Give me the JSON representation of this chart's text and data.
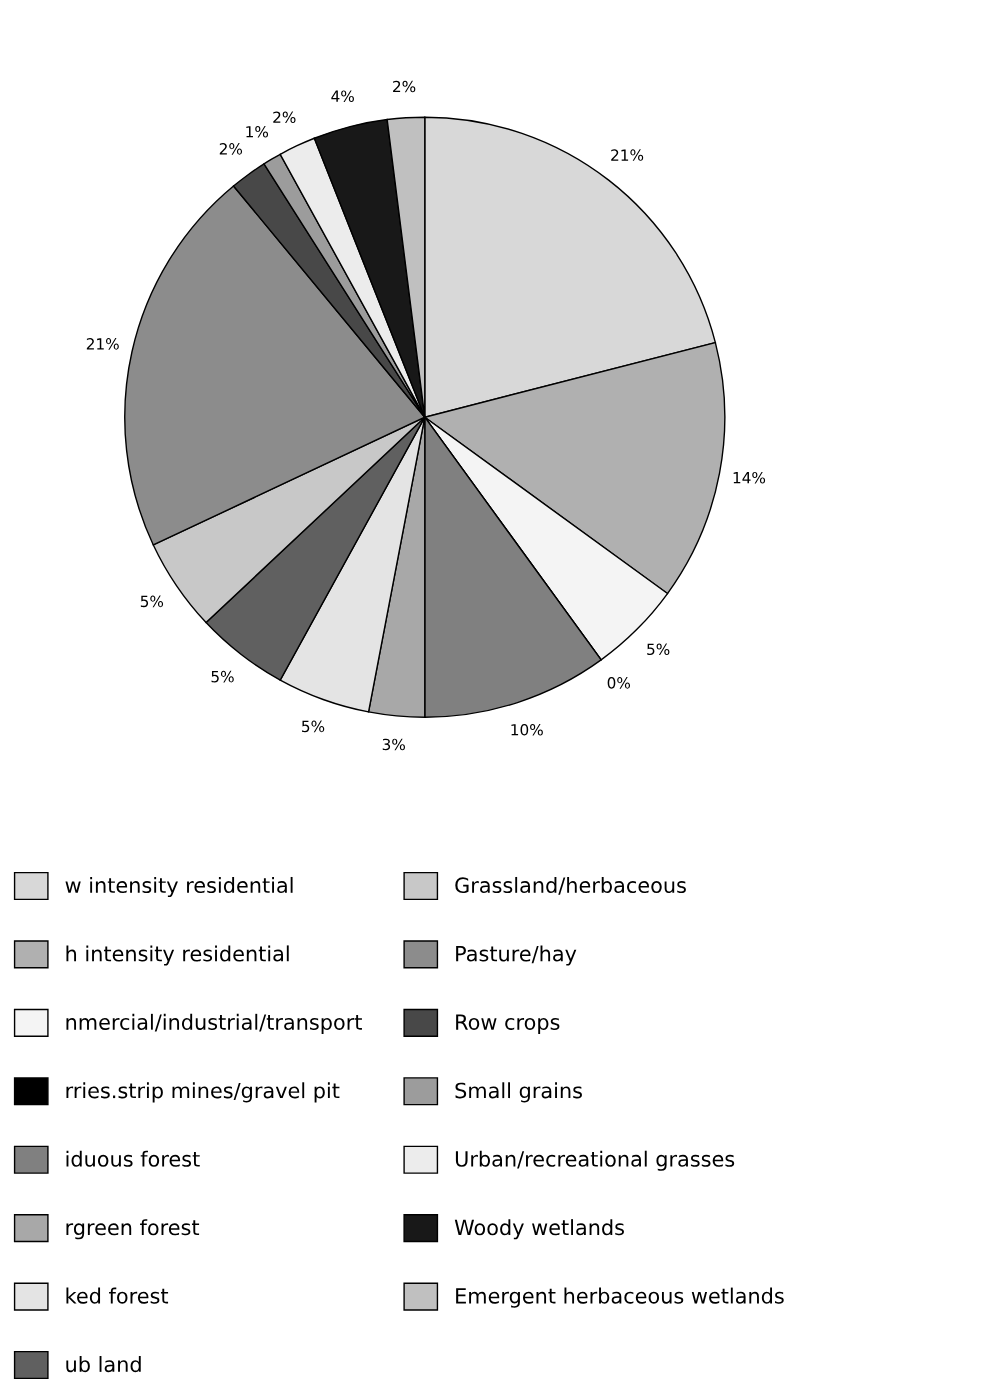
{
  "chart_data": {
    "type": "pie",
    "categories": [
      "w intensity residential",
      "h intensity residential",
      "nmercial/industrial/transport",
      "rries.strip mines/gravel pit",
      "iduous forest",
      "rgreen forest",
      "ked forest",
      "ub land",
      "Grassland/herbaceous",
      "Pasture/hay",
      "Row crops",
      "Small grains",
      "Urban/recreational grasses",
      "Woody wetlands",
      "Emergent herbaceous wetlands"
    ],
    "values": [
      21,
      14,
      5,
      0,
      10,
      3,
      5,
      5,
      5,
      21,
      2,
      1,
      2,
      4,
      2
    ],
    "colors": [
      "#d8d8d8",
      "#b0b0b0",
      "#f4f4f4",
      "#000000",
      "#808080",
      "#a8a8a8",
      "#e4e4e4",
      "#606060",
      "#c8c8c8",
      "#8c8c8c",
      "#484848",
      "#9c9c9c",
      "#ececec",
      "#181818",
      "#c0c0c0"
    ],
    "value_labels": [
      "21%",
      "14%",
      "5%",
      "0%",
      "10%",
      "3%",
      "5%",
      "5%",
      "5%",
      "21%",
      "2%",
      "1%",
      "2%",
      "4%",
      "2%"
    ],
    "legend": "bottom"
  }
}
